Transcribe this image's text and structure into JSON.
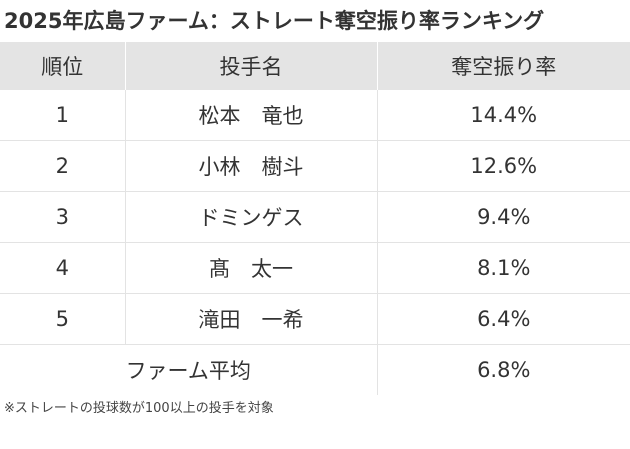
{
  "title": "2025年広島ファーム：ストレート奪空振り率ランキング",
  "table": {
    "headers": {
      "rank": "順位",
      "player": "投手名",
      "rate": "奪空振り率"
    },
    "rows": [
      {
        "rank": "1",
        "player": "松本　竜也",
        "rate": "14.4%"
      },
      {
        "rank": "2",
        "player": "小林　樹斗",
        "rate": "12.6%"
      },
      {
        "rank": "3",
        "player": "ドミンゲス",
        "rate": "9.4%"
      },
      {
        "rank": "4",
        "player": "髙　太一",
        "rate": "8.1%"
      },
      {
        "rank": "5",
        "player": "滝田　一希",
        "rate": "6.4%"
      }
    ],
    "average": {
      "label": "ファーム平均",
      "rate": "6.8%"
    }
  },
  "note": "※ストレートの投球数が100以上の投手を対象"
}
